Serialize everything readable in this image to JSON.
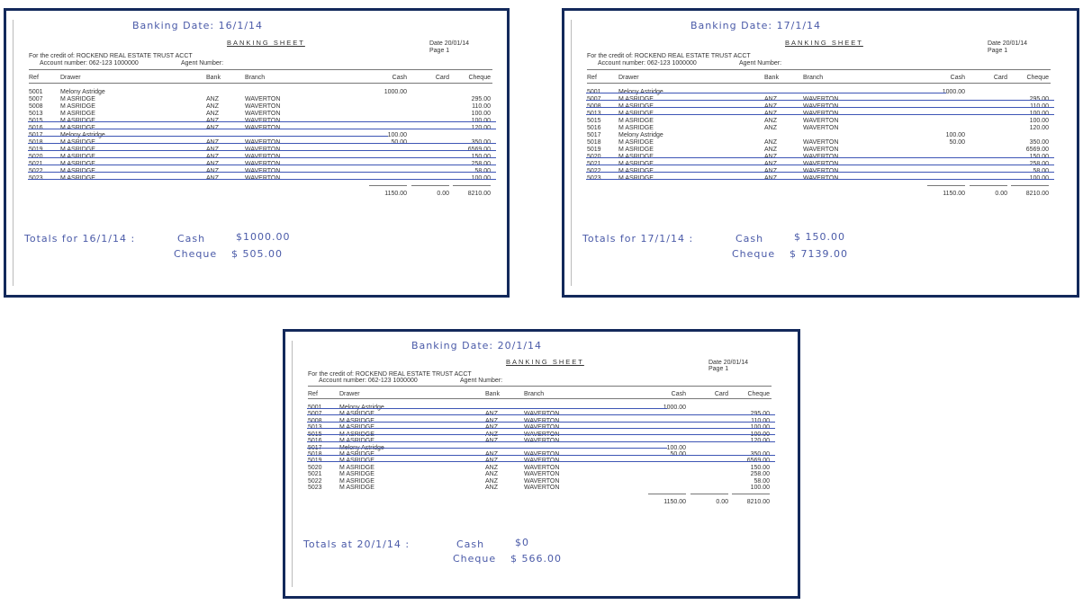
{
  "columns": {
    "ref": "Ref",
    "drawer": "Drawer",
    "bank": "Bank",
    "branch": "Branch",
    "cash": "Cash",
    "card": "Card",
    "cheque": "Cheque"
  },
  "sheet_title": "BANKING SHEET",
  "date_label": "Date 20/01/14",
  "page_label": "Page 1",
  "credit_line": "For the credit of: ROCKEND REAL ESTATE TRUST ACCT",
  "account_line": "Account number: 062-123 1000000",
  "agent_label": "Agent Number:",
  "rows": [
    {
      "ref": "5001",
      "drawer": "Melony Astridge",
      "bank": "",
      "branch": "",
      "cash": "1000.00",
      "cheque": ""
    },
    {
      "ref": "5007",
      "drawer": "M ASRIDGE",
      "bank": "ANZ",
      "branch": "WAVERTON",
      "cash": "",
      "cheque": "295.00"
    },
    {
      "ref": "5008",
      "drawer": "M ASRIDGE",
      "bank": "ANZ",
      "branch": "WAVERTON",
      "cash": "",
      "cheque": "110.00"
    },
    {
      "ref": "5013",
      "drawer": "M ASRIDGE",
      "bank": "ANZ",
      "branch": "WAVERTON",
      "cash": "",
      "cheque": "100.00"
    },
    {
      "ref": "5015",
      "drawer": "M ASRIDGE",
      "bank": "ANZ",
      "branch": "WAVERTON",
      "cash": "",
      "cheque": "100.00"
    },
    {
      "ref": "5016",
      "drawer": "M ASRIDGE",
      "bank": "ANZ",
      "branch": "WAVERTON",
      "cash": "",
      "cheque": "120.00"
    },
    {
      "ref": "5017",
      "drawer": "Melony Astridge",
      "bank": "",
      "branch": "",
      "cash": "100.00",
      "cheque": ""
    },
    {
      "ref": "5018",
      "drawer": "M ASRIDGE",
      "bank": "ANZ",
      "branch": "WAVERTON",
      "cash": "50.00",
      "cheque": "350.00"
    },
    {
      "ref": "5019",
      "drawer": "M ASRIDGE",
      "bank": "ANZ",
      "branch": "WAVERTON",
      "cash": "",
      "cheque": "6569.00"
    },
    {
      "ref": "5020",
      "drawer": "M ASRIDGE",
      "bank": "ANZ",
      "branch": "WAVERTON",
      "cash": "",
      "cheque": "150.00"
    },
    {
      "ref": "5021",
      "drawer": "M ASRIDGE",
      "bank": "ANZ",
      "branch": "WAVERTON",
      "cash": "",
      "cheque": "258.00"
    },
    {
      "ref": "5022",
      "drawer": "M ASRIDGE",
      "bank": "ANZ",
      "branch": "WAVERTON",
      "cash": "",
      "cheque": "58.00"
    },
    {
      "ref": "5023",
      "drawer": "M ASRIDGE",
      "bank": "ANZ",
      "branch": "WAVERTON",
      "cash": "",
      "cheque": "100.00"
    }
  ],
  "totals": {
    "cash": "1150.00",
    "card": "0.00",
    "cheque": "8210.00"
  },
  "sheets": [
    {
      "banking_date": "Banking Date: 16/1/14",
      "struck_rows": [
        4,
        5,
        6,
        7,
        8,
        9,
        10,
        11,
        12
      ],
      "totals_label": "Totals for 16/1/14 :",
      "cash_label": "Cash",
      "cash_value": "$1000.00",
      "cheque_label": "Cheque",
      "cheque_value": "$ 505.00"
    },
    {
      "banking_date": "Banking Date: 17/1/14",
      "struck_rows": [
        0,
        1,
        2,
        3,
        9,
        10,
        11,
        12
      ],
      "totals_label": "Totals for 17/1/14 :",
      "cash_label": "Cash",
      "cash_value": "$ 150.00",
      "cheque_label": "Cheque",
      "cheque_value": "$ 7139.00"
    },
    {
      "banking_date": "Banking Date: 20/1/14",
      "struck_rows": [
        0,
        1,
        2,
        3,
        4,
        5,
        6,
        7,
        8
      ],
      "totals_label": "Totals at 20/1/14 :",
      "cash_label": "Cash",
      "cash_value": "$0",
      "cheque_label": "Cheque",
      "cheque_value": "$ 566.00"
    }
  ],
  "colors": {
    "border": "#13295b",
    "ink": "#4a5aa8"
  }
}
